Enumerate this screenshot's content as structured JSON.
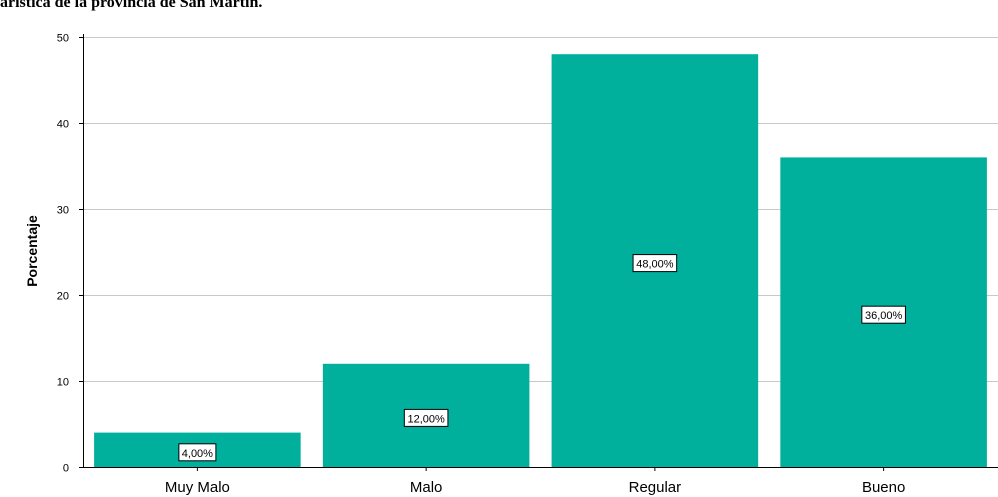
{
  "chart_data": {
    "type": "bar",
    "title": "aristica de la provincia de San Martin.",
    "xlabel": "",
    "ylabel": "Porcentaje",
    "categories": [
      "Muy Malo",
      "Malo",
      "Regular",
      "Bueno"
    ],
    "values": [
      4,
      12,
      48,
      36
    ],
    "data_labels": [
      "4,00%",
      "12,00%",
      "48,00%",
      "36,00%"
    ],
    "ylim": [
      0,
      50
    ],
    "yticks": [
      0,
      10,
      20,
      30,
      40,
      50
    ],
    "ytick_labels": [
      "0",
      "10",
      "20",
      "30",
      "40",
      "50"
    ],
    "grid": true,
    "bar_color": "#00B09D",
    "grid_color": "#C8C8C8"
  }
}
